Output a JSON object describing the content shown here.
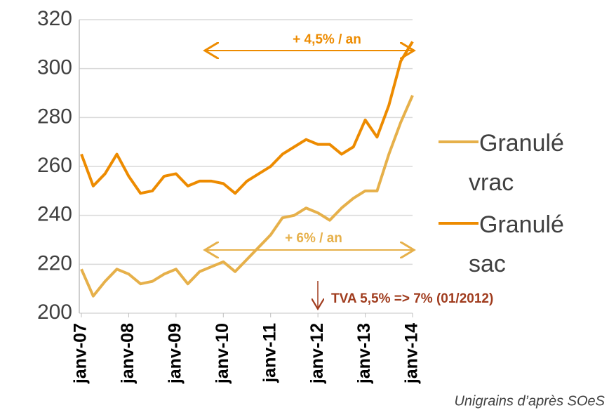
{
  "chart_data": {
    "type": "line",
    "categories": [
      "janv-07",
      null,
      null,
      null,
      "janv-08",
      null,
      null,
      null,
      "janv-09",
      null,
      null,
      null,
      "janv-10",
      null,
      null,
      null,
      "janv-11",
      null,
      null,
      null,
      "janv-12",
      null,
      null,
      null,
      "janv-13",
      null,
      null,
      null,
      "janv-14"
    ],
    "series": [
      {
        "name": "Granulé vrac",
        "color": "#e6b04a",
        "values": [
          218,
          207,
          213,
          218,
          216,
          212,
          213,
          216,
          218,
          212,
          217,
          219,
          221,
          217,
          222,
          227,
          232,
          239,
          240,
          243,
          241,
          238,
          243,
          247,
          250,
          250,
          265,
          278,
          289
        ]
      },
      {
        "name": "Granulé sac",
        "color": "#ed8b00",
        "values": [
          265,
          252,
          257,
          265,
          256,
          249,
          250,
          256,
          257,
          252,
          254,
          254,
          253,
          249,
          254,
          257,
          260,
          265,
          268,
          271,
          269,
          269,
          265,
          268,
          279,
          272,
          285,
          303,
          311
        ]
      }
    ],
    "ylim": [
      200,
      320
    ],
    "yticks": [
      200,
      220,
      240,
      260,
      280,
      300,
      320
    ],
    "grid": true,
    "annotations": [
      "+ 4,5% / an",
      "+ 6% / an",
      "TVA 5,5% => 7% (01/2012)"
    ],
    "source": "Unigrains d’après SOeS"
  }
}
